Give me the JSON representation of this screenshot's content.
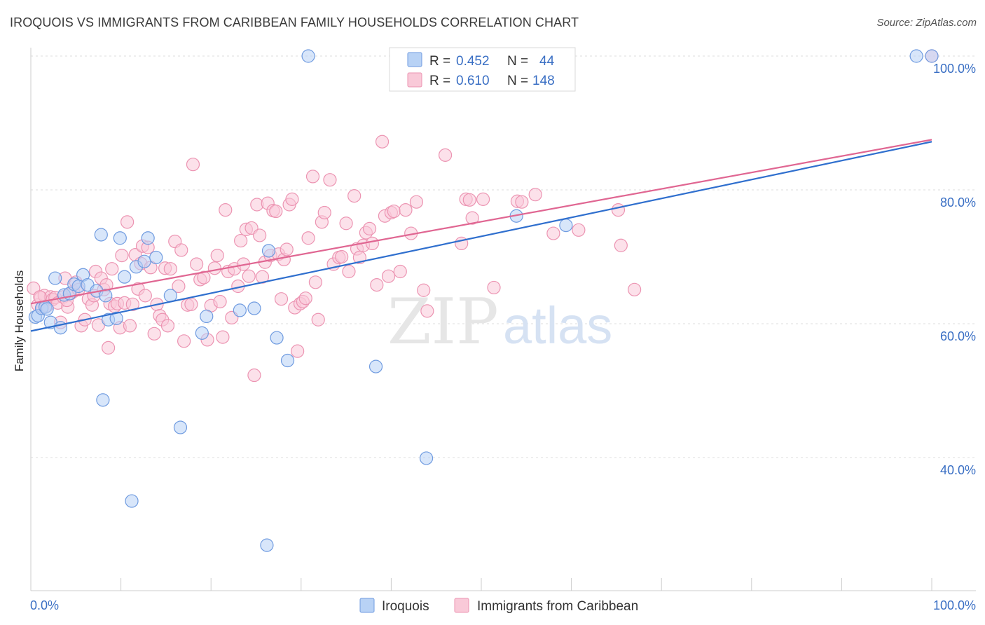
{
  "header": {
    "title": "IROQUOIS VS IMMIGRANTS FROM CARIBBEAN FAMILY HOUSEHOLDS CORRELATION CHART",
    "source": "Source: ZipAtlas.com"
  },
  "watermark": {
    "zip": "ZIP",
    "atlas": "atlas"
  },
  "colors": {
    "iroquois_fill": "#b8d2f5",
    "iroquois_stroke": "#6f9be0",
    "iroquois_line": "#2f6fce",
    "caribbean_fill": "#f9c9d8",
    "caribbean_stroke": "#ec94b2",
    "caribbean_line": "#e06692",
    "grid": "#dddddd",
    "axis_label": "#3a6fc4"
  },
  "legend": {
    "rows": [
      {
        "r_label": "R = ",
        "r_value": "0.452",
        "n_label": "N = ",
        "n_value": "44"
      },
      {
        "r_label": "R = ",
        "r_value": "0.610",
        "n_label": "N = ",
        "n_value": "148"
      }
    ]
  },
  "chart_data": {
    "type": "scatter",
    "title": "IROQUOIS VS IMMIGRANTS FROM CARIBBEAN FAMILY HOUSEHOLDS CORRELATION CHART",
    "xlabel": "",
    "ylabel": "Family Households",
    "xlim": [
      0,
      100
    ],
    "ylim": [
      20.5,
      102
    ],
    "x_tick_labels": [
      "0.0%",
      "100.0%"
    ],
    "y_ticks": [
      40,
      60,
      80,
      100
    ],
    "y_tick_labels": [
      "40.0%",
      "60.0%",
      "80.0%",
      "100.0%"
    ],
    "grid": true,
    "legend_position": "top-center",
    "series": [
      {
        "name": "Iroquois",
        "trend": {
          "x": [
            0,
            100
          ],
          "y": [
            58.9,
            87.2
          ]
        },
        "points": [
          [
            0.5,
            61.0
          ],
          [
            0.8,
            61.2
          ],
          [
            1.2,
            62.3
          ],
          [
            1.6,
            62.5
          ],
          [
            1.8,
            62.2
          ],
          [
            2.2,
            60.2
          ],
          [
            2.7,
            66.8
          ],
          [
            3.3,
            59.4
          ],
          [
            3.7,
            64.3
          ],
          [
            4.3,
            64.5
          ],
          [
            4.8,
            65.9
          ],
          [
            5.3,
            65.6
          ],
          [
            5.8,
            67.3
          ],
          [
            6.3,
            65.8
          ],
          [
            7.3,
            64.9
          ],
          [
            7.8,
            73.3
          ],
          [
            8.0,
            48.6
          ],
          [
            8.3,
            64.2
          ],
          [
            8.6,
            60.6
          ],
          [
            9.5,
            60.8
          ],
          [
            9.9,
            72.8
          ],
          [
            10.4,
            67.0
          ],
          [
            11.2,
            33.5
          ],
          [
            11.7,
            68.5
          ],
          [
            12.6,
            69.3
          ],
          [
            13.0,
            72.8
          ],
          [
            13.9,
            69.9
          ],
          [
            15.5,
            64.2
          ],
          [
            16.6,
            44.5
          ],
          [
            19.0,
            58.6
          ],
          [
            19.5,
            61.1
          ],
          [
            23.2,
            62.0
          ],
          [
            24.8,
            62.3
          ],
          [
            26.2,
            26.9
          ],
          [
            26.4,
            70.9
          ],
          [
            27.3,
            57.9
          ],
          [
            28.5,
            54.5
          ],
          [
            30.8,
            100.0
          ],
          [
            38.3,
            53.6
          ],
          [
            43.9,
            39.9
          ],
          [
            53.9,
            76.1
          ],
          [
            59.4,
            74.7
          ],
          [
            98.3,
            100.0
          ],
          [
            100.0,
            100.0
          ]
        ]
      },
      {
        "name": "Immigrants from Caribbean",
        "trend": {
          "x": [
            0,
            100
          ],
          "y": [
            63.0,
            87.5
          ]
        },
        "points": [
          [
            0.3,
            65.3
          ],
          [
            0.8,
            62.8
          ],
          [
            1.1,
            63.9
          ],
          [
            1.3,
            62.5
          ],
          [
            1.5,
            64.2
          ],
          [
            1.8,
            62.7
          ],
          [
            2.2,
            64.0
          ],
          [
            2.4,
            63.6
          ],
          [
            2.7,
            63.9
          ],
          [
            3.0,
            63.1
          ],
          [
            3.3,
            60.2
          ],
          [
            3.6,
            64.0
          ],
          [
            3.8,
            66.8
          ],
          [
            4.1,
            62.5
          ],
          [
            4.4,
            64.5
          ],
          [
            4.7,
            64.8
          ],
          [
            5.0,
            66.2
          ],
          [
            5.3,
            65.1
          ],
          [
            5.6,
            59.7
          ],
          [
            6.0,
            60.6
          ],
          [
            6.4,
            63.7
          ],
          [
            6.8,
            62.8
          ],
          [
            7.0,
            64.2
          ],
          [
            7.2,
            67.8
          ],
          [
            7.5,
            59.8
          ],
          [
            7.8,
            66.8
          ],
          [
            8.1,
            65.1
          ],
          [
            8.4,
            65.8
          ],
          [
            8.6,
            56.4
          ],
          [
            8.8,
            63.0
          ],
          [
            9.0,
            68.2
          ],
          [
            9.3,
            62.6
          ],
          [
            9.6,
            63.0
          ],
          [
            9.9,
            59.4
          ],
          [
            10.1,
            70.2
          ],
          [
            10.4,
            63.1
          ],
          [
            10.7,
            75.2
          ],
          [
            11.0,
            59.7
          ],
          [
            11.3,
            62.9
          ],
          [
            11.6,
            70.3
          ],
          [
            11.9,
            65.2
          ],
          [
            12.2,
            69.0
          ],
          [
            12.4,
            71.6
          ],
          [
            12.7,
            64.2
          ],
          [
            13.0,
            71.4
          ],
          [
            13.3,
            68.4
          ],
          [
            13.7,
            58.5
          ],
          [
            14.0,
            62.9
          ],
          [
            14.3,
            61.2
          ],
          [
            14.6,
            60.6
          ],
          [
            14.9,
            68.3
          ],
          [
            15.2,
            59.7
          ],
          [
            15.5,
            68.2
          ],
          [
            16.0,
            72.3
          ],
          [
            16.4,
            65.6
          ],
          [
            16.7,
            71.0
          ],
          [
            17.0,
            57.4
          ],
          [
            17.4,
            62.8
          ],
          [
            17.8,
            62.9
          ],
          [
            18.0,
            83.8
          ],
          [
            18.4,
            68.9
          ],
          [
            18.8,
            66.6
          ],
          [
            19.2,
            66.9
          ],
          [
            19.6,
            57.6
          ],
          [
            20.0,
            62.7
          ],
          [
            20.4,
            68.3
          ],
          [
            20.7,
            70.2
          ],
          [
            21.0,
            63.3
          ],
          [
            21.3,
            58.0
          ],
          [
            21.6,
            77.0
          ],
          [
            21.9,
            67.8
          ],
          [
            22.3,
            60.9
          ],
          [
            22.6,
            68.2
          ],
          [
            23.0,
            65.6
          ],
          [
            23.3,
            72.4
          ],
          [
            23.6,
            68.9
          ],
          [
            23.9,
            74.1
          ],
          [
            24.2,
            67.1
          ],
          [
            24.5,
            74.3
          ],
          [
            24.8,
            52.3
          ],
          [
            25.1,
            77.8
          ],
          [
            25.4,
            73.2
          ],
          [
            25.7,
            67.0
          ],
          [
            26.0,
            69.2
          ],
          [
            26.3,
            78.0
          ],
          [
            26.6,
            70.2
          ],
          [
            26.9,
            76.9
          ],
          [
            27.2,
            76.8
          ],
          [
            27.5,
            70.4
          ],
          [
            27.8,
            63.7
          ],
          [
            28.1,
            69.6
          ],
          [
            28.4,
            71.1
          ],
          [
            28.7,
            77.8
          ],
          [
            29.0,
            78.6
          ],
          [
            29.3,
            62.4
          ],
          [
            29.6,
            55.9
          ],
          [
            29.9,
            63.0
          ],
          [
            30.2,
            63.3
          ],
          [
            30.5,
            63.8
          ],
          [
            30.8,
            72.8
          ],
          [
            31.3,
            82.0
          ],
          [
            31.6,
            66.2
          ],
          [
            31.9,
            60.6
          ],
          [
            32.3,
            75.2
          ],
          [
            32.6,
            76.6
          ],
          [
            33.2,
            81.5
          ],
          [
            33.6,
            68.9
          ],
          [
            34.2,
            69.9
          ],
          [
            34.5,
            70.0
          ],
          [
            35.0,
            75.0
          ],
          [
            35.3,
            67.8
          ],
          [
            35.9,
            79.1
          ],
          [
            36.2,
            71.2
          ],
          [
            36.5,
            69.9
          ],
          [
            36.9,
            71.7
          ],
          [
            37.2,
            73.6
          ],
          [
            37.6,
            74.2
          ],
          [
            37.9,
            72.0
          ],
          [
            38.4,
            65.8
          ],
          [
            39.0,
            87.2
          ],
          [
            39.3,
            76.1
          ],
          [
            39.7,
            67.1
          ],
          [
            40.0,
            76.6
          ],
          [
            40.3,
            76.8
          ],
          [
            41.0,
            67.8
          ],
          [
            41.6,
            77.0
          ],
          [
            42.2,
            73.5
          ],
          [
            42.8,
            78.2
          ],
          [
            43.6,
            65.0
          ],
          [
            44.0,
            61.9
          ],
          [
            46.0,
            85.2
          ],
          [
            47.8,
            72.0
          ],
          [
            48.3,
            78.6
          ],
          [
            48.7,
            78.5
          ],
          [
            49.0,
            75.8
          ],
          [
            50.2,
            78.6
          ],
          [
            51.4,
            65.4
          ],
          [
            54.0,
            78.3
          ],
          [
            54.5,
            78.2
          ],
          [
            56.0,
            79.3
          ],
          [
            58.0,
            73.5
          ],
          [
            60.8,
            74.0
          ],
          [
            65.2,
            77.0
          ],
          [
            65.5,
            71.7
          ],
          [
            67.0,
            65.1
          ],
          [
            100.0,
            100.0
          ],
          [
            1.0,
            64.0
          ],
          [
            4.0,
            63.5
          ]
        ]
      }
    ]
  }
}
